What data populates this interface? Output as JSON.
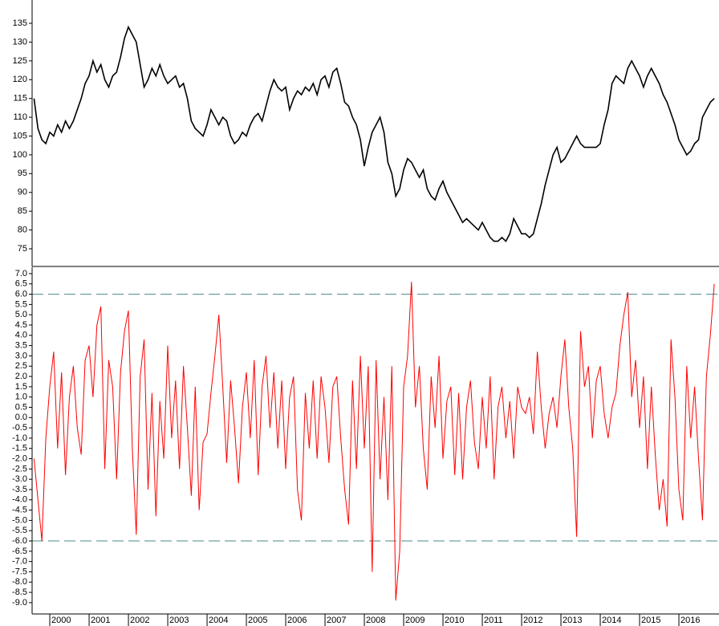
{
  "chart_data": [
    {
      "type": "line",
      "color": "#000000",
      "xlim": [
        1999.55,
        2017.02
      ],
      "ylim": [
        70.3,
        141.2
      ],
      "yticks": [
        75,
        80,
        85,
        90,
        95,
        100,
        105,
        110,
        115,
        120,
        125,
        130,
        135
      ],
      "x": [
        1999.6,
        1999.7,
        1999.8,
        1999.9,
        2000.0,
        2000.1,
        2000.2,
        2000.3,
        2000.4,
        2000.5,
        2000.6,
        2000.7,
        2000.8,
        2000.9,
        2001.0,
        2001.1,
        2001.2,
        2001.3,
        2001.4,
        2001.5,
        2001.6,
        2001.7,
        2001.8,
        2001.9,
        2002.0,
        2002.1,
        2002.2,
        2002.3,
        2002.4,
        2002.5,
        2002.6,
        2002.7,
        2002.8,
        2002.9,
        2003.0,
        2003.1,
        2003.2,
        2003.3,
        2003.4,
        2003.5,
        2003.6,
        2003.7,
        2003.8,
        2003.9,
        2004.0,
        2004.1,
        2004.2,
        2004.3,
        2004.4,
        2004.5,
        2004.6,
        2004.7,
        2004.8,
        2004.9,
        2005.0,
        2005.1,
        2005.2,
        2005.3,
        2005.4,
        2005.5,
        2005.6,
        2005.7,
        2005.8,
        2005.9,
        2006.0,
        2006.1,
        2006.2,
        2006.3,
        2006.4,
        2006.5,
        2006.6,
        2006.7,
        2006.8,
        2006.9,
        2007.0,
        2007.1,
        2007.2,
        2007.3,
        2007.4,
        2007.5,
        2007.6,
        2007.7,
        2007.8,
        2007.9,
        2008.0,
        2008.1,
        2008.2,
        2008.3,
        2008.4,
        2008.5,
        2008.6,
        2008.7,
        2008.8,
        2008.9,
        2009.0,
        2009.1,
        2009.2,
        2009.3,
        2009.4,
        2009.5,
        2009.6,
        2009.7,
        2009.8,
        2009.9,
        2010.0,
        2010.1,
        2010.2,
        2010.3,
        2010.4,
        2010.5,
        2010.6,
        2010.7,
        2010.8,
        2010.9,
        2011.0,
        2011.1,
        2011.2,
        2011.3,
        2011.4,
        2011.5,
        2011.6,
        2011.7,
        2011.8,
        2011.9,
        2012.0,
        2012.1,
        2012.2,
        2012.3,
        2012.4,
        2012.5,
        2012.6,
        2012.7,
        2012.8,
        2012.9,
        2013.0,
        2013.1,
        2013.2,
        2013.3,
        2013.4,
        2013.5,
        2013.6,
        2013.7,
        2013.8,
        2013.9,
        2014.0,
        2014.1,
        2014.2,
        2014.3,
        2014.4,
        2014.5,
        2014.6,
        2014.7,
        2014.8,
        2014.9,
        2015.0,
        2015.1,
        2015.2,
        2015.3,
        2015.4,
        2015.5,
        2015.6,
        2015.7,
        2015.8,
        2015.9,
        2016.0,
        2016.1,
        2016.2,
        2016.3,
        2016.4,
        2016.5,
        2016.6,
        2016.7,
        2016.8,
        2016.9
      ],
      "values": [
        115,
        107,
        104,
        103,
        106,
        105,
        108,
        106,
        109,
        107,
        109,
        112,
        115,
        119,
        121,
        125,
        122,
        124,
        120,
        118,
        121,
        122,
        126,
        131,
        134,
        132,
        130,
        124,
        118,
        120,
        123,
        121,
        124,
        121,
        119,
        120,
        121,
        118,
        119,
        115,
        109,
        107,
        106,
        105,
        108,
        112,
        110,
        108,
        110,
        109,
        105,
        103,
        104,
        106,
        105,
        108,
        110,
        111,
        109,
        113,
        117,
        120,
        118,
        117,
        118,
        112,
        115,
        117,
        116,
        118,
        117,
        119,
        116,
        120,
        121,
        118,
        122,
        123,
        119,
        114,
        113,
        110,
        108,
        104,
        97,
        102,
        106,
        108,
        110,
        106,
        98,
        95,
        89,
        91,
        96,
        99,
        98,
        96,
        94,
        96,
        91,
        89,
        88,
        91,
        93,
        90,
        88,
        86,
        84,
        82,
        83,
        82,
        81,
        80,
        82,
        80,
        78,
        77,
        77,
        78,
        77,
        79,
        83,
        81,
        79,
        79,
        78,
        79,
        83,
        87,
        92,
        96,
        100,
        102,
        98,
        99,
        101,
        103,
        105,
        103,
        102,
        102,
        102,
        102,
        103,
        108,
        112,
        119,
        121,
        120,
        119,
        123,
        125,
        123,
        121,
        118,
        121,
        123,
        121,
        119,
        116,
        114,
        111,
        108,
        104,
        102,
        100,
        101,
        103,
        104,
        110,
        112,
        114,
        115
      ]
    },
    {
      "type": "line",
      "color": "#ff0000",
      "xlim": [
        1999.55,
        2017.02
      ],
      "ylim": [
        -9.55,
        7.31
      ],
      "xticks": [
        2000,
        2001,
        2002,
        2003,
        2004,
        2005,
        2006,
        2007,
        2008,
        2009,
        2010,
        2011,
        2012,
        2013,
        2014,
        2015,
        2016
      ],
      "yticks": [
        {
          "value": 7,
          "label": "7.0"
        },
        6.5,
        {
          "value": 6,
          "label": "6.0"
        },
        5.5,
        {
          "value": 5,
          "label": "5.0"
        },
        4.5,
        {
          "value": 4,
          "label": "4.0"
        },
        3.5,
        {
          "value": 3,
          "label": "3.0"
        },
        2.5,
        {
          "value": 2,
          "label": "2.0"
        },
        1.5,
        {
          "value": 1,
          "label": "1.0"
        },
        0.5,
        {
          "value": 0,
          "label": "0.0"
        },
        {
          "value": -0.5,
          "label": "-0.5"
        },
        {
          "value": -1,
          "label": "-1.0"
        },
        -1.5,
        {
          "value": -2,
          "label": "-2.0"
        },
        -2.5,
        {
          "value": -3,
          "label": "-3.0"
        },
        -3.5,
        {
          "value": -4,
          "label": "-4.0"
        },
        -4.5,
        {
          "value": -5,
          "label": "-5.0"
        },
        -5.5,
        {
          "value": -6,
          "label": "-6.0"
        },
        -6.5,
        {
          "value": -7,
          "label": "-7.0"
        },
        -7.5,
        {
          "value": -8,
          "label": "-8.0"
        },
        -8.5,
        {
          "value": -9,
          "label": "-9.0"
        }
      ],
      "reference_lines": [
        6,
        -6
      ],
      "reference_color": "#4a8a8a",
      "x": [
        1999.6,
        1999.7,
        1999.8,
        1999.9,
        2000.0,
        2000.1,
        2000.2,
        2000.3,
        2000.4,
        2000.5,
        2000.6,
        2000.7,
        2000.8,
        2000.9,
        2001.0,
        2001.1,
        2001.2,
        2001.3,
        2001.4,
        2001.5,
        2001.6,
        2001.7,
        2001.8,
        2001.9,
        2002.0,
        2002.1,
        2002.2,
        2002.3,
        2002.4,
        2002.5,
        2002.6,
        2002.7,
        2002.8,
        2002.9,
        2003.0,
        2003.1,
        2003.2,
        2003.3,
        2003.4,
        2003.5,
        2003.6,
        2003.7,
        2003.8,
        2003.9,
        2004.0,
        2004.1,
        2004.2,
        2004.3,
        2004.4,
        2004.5,
        2004.6,
        2004.7,
        2004.8,
        2004.9,
        2005.0,
        2005.1,
        2005.2,
        2005.3,
        2005.4,
        2005.5,
        2005.6,
        2005.7,
        2005.8,
        2005.9,
        2006.0,
        2006.1,
        2006.2,
        2006.3,
        2006.4,
        2006.5,
        2006.6,
        2006.7,
        2006.8,
        2006.9,
        2007.0,
        2007.1,
        2007.2,
        2007.3,
        2007.4,
        2007.5,
        2007.6,
        2007.7,
        2007.8,
        2007.9,
        2008.0,
        2008.1,
        2008.2,
        2008.3,
        2008.4,
        2008.5,
        2008.6,
        2008.7,
        2008.8,
        2008.9,
        2009.0,
        2009.1,
        2009.2,
        2009.3,
        2009.4,
        2009.5,
        2009.6,
        2009.7,
        2009.8,
        2009.9,
        2010.0,
        2010.1,
        2010.2,
        2010.3,
        2010.4,
        2010.5,
        2010.6,
        2010.7,
        2010.8,
        2010.9,
        2011.0,
        2011.1,
        2011.2,
        2011.3,
        2011.4,
        2011.5,
        2011.6,
        2011.7,
        2011.8,
        2011.9,
        2012.0,
        2012.1,
        2012.2,
        2012.3,
        2012.4,
        2012.5,
        2012.6,
        2012.7,
        2012.8,
        2012.9,
        2013.0,
        2013.1,
        2013.2,
        2013.3,
        2013.4,
        2013.5,
        2013.6,
        2013.7,
        2013.8,
        2013.9,
        2014.0,
        2014.1,
        2014.2,
        2014.3,
        2014.4,
        2014.5,
        2014.6,
        2014.7,
        2014.8,
        2014.9,
        2015.0,
        2015.1,
        2015.2,
        2015.3,
        2015.4,
        2015.5,
        2015.6,
        2015.7,
        2015.8,
        2015.9,
        2016.0,
        2016.1,
        2016.2,
        2016.3,
        2016.4,
        2016.5,
        2016.6,
        2016.7,
        2016.8,
        2016.9
      ],
      "values": [
        -2,
        -4,
        -6,
        -1,
        1.5,
        3.2,
        -1.5,
        2.2,
        -2.8,
        1.0,
        2.5,
        -0.5,
        -1.8,
        2.8,
        3.5,
        1.0,
        4.5,
        5.4,
        -2.5,
        2.8,
        1.5,
        -3.0,
        2.2,
        4.2,
        5.2,
        -1.5,
        -5.7,
        2.0,
        3.8,
        -3.5,
        1.2,
        -4.8,
        0.8,
        -2.0,
        3.5,
        -1.0,
        1.8,
        -2.5,
        2.5,
        -0.5,
        -3.8,
        1.5,
        -4.5,
        -1.2,
        -0.8,
        1.2,
        3.0,
        5.0,
        1.5,
        -2.2,
        1.8,
        -0.5,
        -3.2,
        0.5,
        2.2,
        -1.0,
        2.8,
        -2.8,
        1.5,
        3.0,
        -0.5,
        2.2,
        -1.5,
        1.8,
        -2.5,
        1.0,
        2.0,
        -3.5,
        -5.0,
        1.2,
        -1.5,
        1.8,
        -2.0,
        2.0,
        0.5,
        -2.2,
        1.5,
        2.0,
        -1.0,
        -3.5,
        -5.2,
        1.8,
        -2.5,
        3.0,
        -1.5,
        2.5,
        -7.5,
        2.8,
        -3.0,
        1.0,
        -4.0,
        2.5,
        -8.9,
        -6.5,
        1.5,
        3.0,
        6.6,
        0.5,
        2.5,
        -1.5,
        -3.5,
        2.0,
        -0.5,
        3.0,
        -2.0,
        0.8,
        1.5,
        -2.8,
        1.2,
        -3.0,
        0.5,
        1.8,
        -1.2,
        -2.5,
        1.0,
        -1.5,
        2.0,
        -3.0,
        0.5,
        1.5,
        -1.0,
        0.8,
        -2.0,
        1.5,
        0.5,
        0.2,
        1.0,
        -0.8,
        3.2,
        0.5,
        -1.5,
        0.2,
        1.0,
        -0.5,
        2.0,
        3.8,
        0.5,
        -1.5,
        -5.8,
        4.2,
        1.5,
        2.5,
        -1.0,
        1.8,
        2.5,
        0.2,
        -1.0,
        0.5,
        1.2,
        3.5,
        5.0,
        6.1,
        1.0,
        2.8,
        -0.5,
        2.0,
        -2.5,
        1.5,
        -1.8,
        -4.5,
        -3.0,
        -5.3,
        3.8,
        1.0,
        -3.5,
        -5.0,
        2.5,
        -1.0,
        1.5,
        -2.0,
        -5.0,
        2.0,
        4.0,
        6.5
      ]
    }
  ]
}
